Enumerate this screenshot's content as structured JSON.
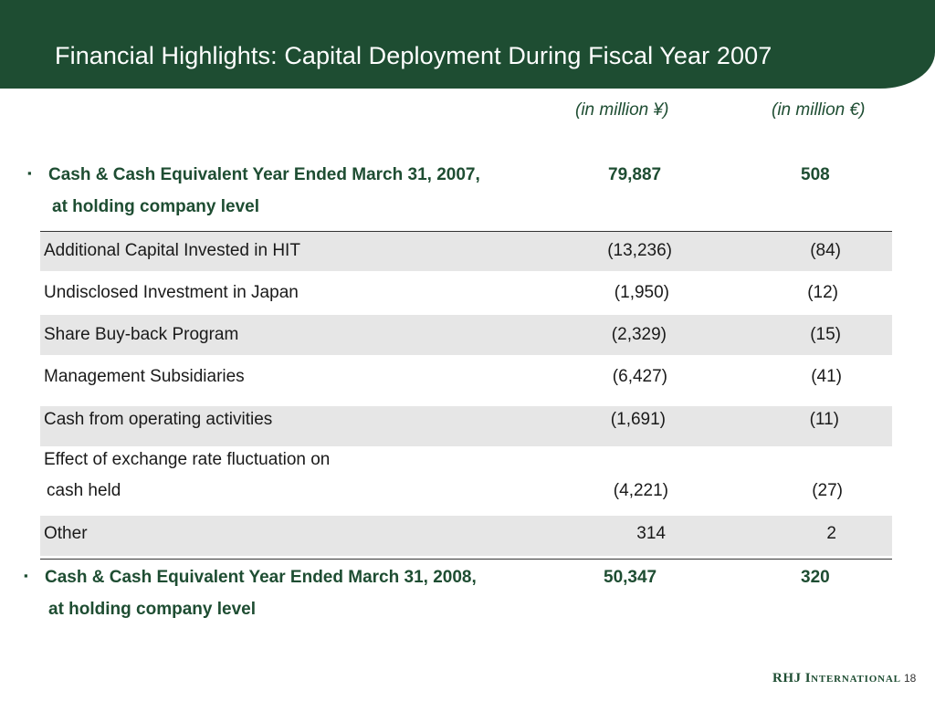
{
  "slide": {
    "title": "Financial Highlights: Capital Deployment During Fiscal Year 2007",
    "page_number": "18"
  },
  "headers": {
    "yen": "(in million ¥)",
    "eur": "(in million €)"
  },
  "opening": {
    "bullet": "▪",
    "line1": "Cash & Cash Equivalent Year Ended March 31, 2007,",
    "line2": "at holding company level",
    "yen": "79,887",
    "eur": "508"
  },
  "rows": [
    {
      "label": "Additional Capital Invested in HIT",
      "yen": "(13,236)",
      "eur": "(84)"
    },
    {
      "label": "Undisclosed Investment in Japan",
      "yen": "(1,950)",
      "eur": "(12)"
    },
    {
      "label": "Share Buy-back Program",
      "yen": "(2,329)",
      "eur": "(15)"
    },
    {
      "label": "Management Subsidiaries",
      "yen": "(6,427)",
      "eur": "(41)"
    },
    {
      "label": "Cash from operating activities",
      "yen": "(1,691)",
      "eur": "(11)"
    },
    {
      "label": "Effect of exchange rate fluctuation on",
      "label2": "cash held",
      "yen": "(4,221)",
      "eur": "(27)"
    },
    {
      "label": "Other",
      "yen": "314",
      "eur": "2"
    }
  ],
  "closing": {
    "bullet": "▪",
    "line1": "Cash & Cash Equivalent Year Ended March 31, 2008,",
    "line2": "at holding company level",
    "yen": "50,347",
    "eur": "320"
  },
  "logo": {
    "part1": "RHJ I",
    "part2": "NTERNATIONAL"
  }
}
